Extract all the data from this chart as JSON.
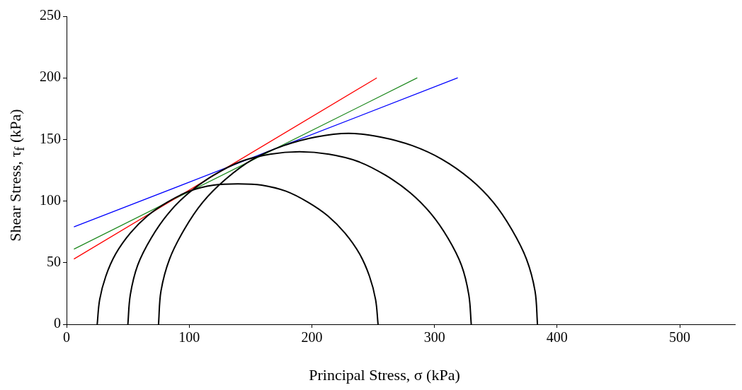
{
  "chart_data": {
    "type": "line",
    "xlabel": "Principal Stress, σ (kPa)",
    "ylabel": "Shear Stress, τ$_{f}$ (kPa)",
    "xlim": [
      0,
      545
    ],
    "xticks": [
      0,
      100,
      200,
      300,
      400,
      500
    ],
    "ylim": [
      0,
      250
    ],
    "yticks": [
      0,
      50,
      100,
      150,
      200,
      250
    ],
    "grid": false,
    "legend": false,
    "marker": "none",
    "line_style": "solid",
    "series": [
      {
        "color": "#000000",
        "x": [
          25,
          27,
          32,
          40,
          52,
          66,
          82,
          100,
          120,
          140,
          159,
          179,
          197,
          213,
          227,
          239,
          247,
          252,
          254
        ],
        "values": [
          0,
          20,
          39,
          57,
          74,
          88,
          99,
          108,
          113,
          114,
          113,
          108,
          99,
          88,
          74,
          57,
          39,
          20,
          0
        ]
      },
      {
        "color": "#000000",
        "x": [
          50,
          52,
          58,
          69,
          83,
          100,
          120,
          142,
          166,
          190,
          214,
          238,
          260,
          280,
          297,
          311,
          322,
          328,
          330
        ],
        "values": [
          0,
          24,
          48,
          70,
          90,
          107,
          121,
          132,
          138,
          140,
          138,
          132,
          121,
          107,
          90,
          70,
          48,
          24,
          0
        ]
      },
      {
        "color": "#000000",
        "x": [
          75,
          77,
          84,
          96,
          111,
          130,
          152,
          177,
          203,
          230,
          256,
          282,
          306,
          329,
          348,
          363,
          375,
          382,
          384
        ],
        "values": [
          0,
          27,
          53,
          77,
          99,
          118,
          134,
          145,
          152,
          155,
          152,
          145,
          134,
          118,
          99,
          77,
          53,
          27,
          0
        ]
      },
      {
        "color": "#ff0000",
        "x": [
          6,
          253
        ],
        "values": [
          53,
          200
        ]
      },
      {
        "color": "#228b22",
        "x": [
          6,
          286
        ],
        "values": [
          61,
          200
        ]
      },
      {
        "color": "#0000ff",
        "x": [
          6,
          319
        ],
        "values": [
          79,
          200
        ]
      }
    ]
  }
}
